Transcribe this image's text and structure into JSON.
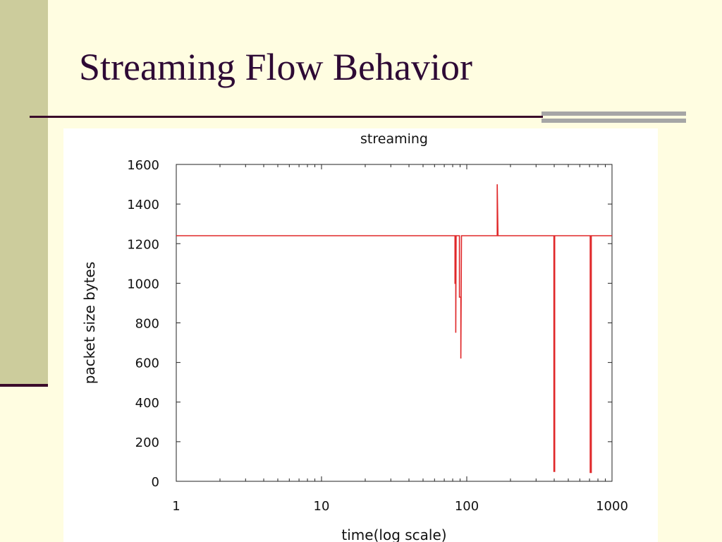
{
  "slide": {
    "title": "Streaming Flow Behavior"
  },
  "colors": {
    "background": "#FFFDE1",
    "left_band": "#CCCC9C",
    "accent_dark": "#3A0A2A",
    "grey_bar": "#A6A6A6",
    "series": "#E0282A"
  },
  "chart_data": {
    "type": "line",
    "title": "streaming",
    "xlabel": "time(log scale)",
    "ylabel": "packet size bytes",
    "xscale": "log",
    "xlim": [
      1,
      1000
    ],
    "ylim": [
      0,
      1600
    ],
    "xticks": [
      1,
      10,
      100,
      1000
    ],
    "xtick_labels": [
      "1",
      "10",
      "100",
      "1000"
    ],
    "yticks": [
      0,
      200,
      400,
      600,
      800,
      1000,
      1200,
      1400,
      1600
    ],
    "ytick_labels": [
      "0",
      "200",
      "400",
      "600",
      "800",
      "1000",
      "1200",
      "1400",
      "1600"
    ],
    "grid": false,
    "baseline": 1240,
    "series": [
      {
        "points": [
          [
            1,
            1240
          ],
          [
            83,
            1240
          ],
          [
            83,
            1000
          ],
          [
            84,
            1000
          ],
          [
            84,
            750
          ],
          [
            84.5,
            1240
          ],
          [
            89,
            1240
          ],
          [
            89,
            930
          ],
          [
            91,
            930
          ],
          [
            91,
            620
          ],
          [
            92,
            1240
          ],
          [
            162,
            1240
          ],
          [
            162,
            1500
          ],
          [
            163,
            1380
          ],
          [
            164,
            1240
          ],
          [
            398,
            1240
          ],
          [
            398,
            50
          ],
          [
            403,
            50
          ],
          [
            403,
            1240
          ],
          [
            708,
            1240
          ],
          [
            708,
            45
          ],
          [
            720,
            45
          ],
          [
            720,
            1240
          ],
          [
            1000,
            1240
          ]
        ]
      }
    ]
  }
}
